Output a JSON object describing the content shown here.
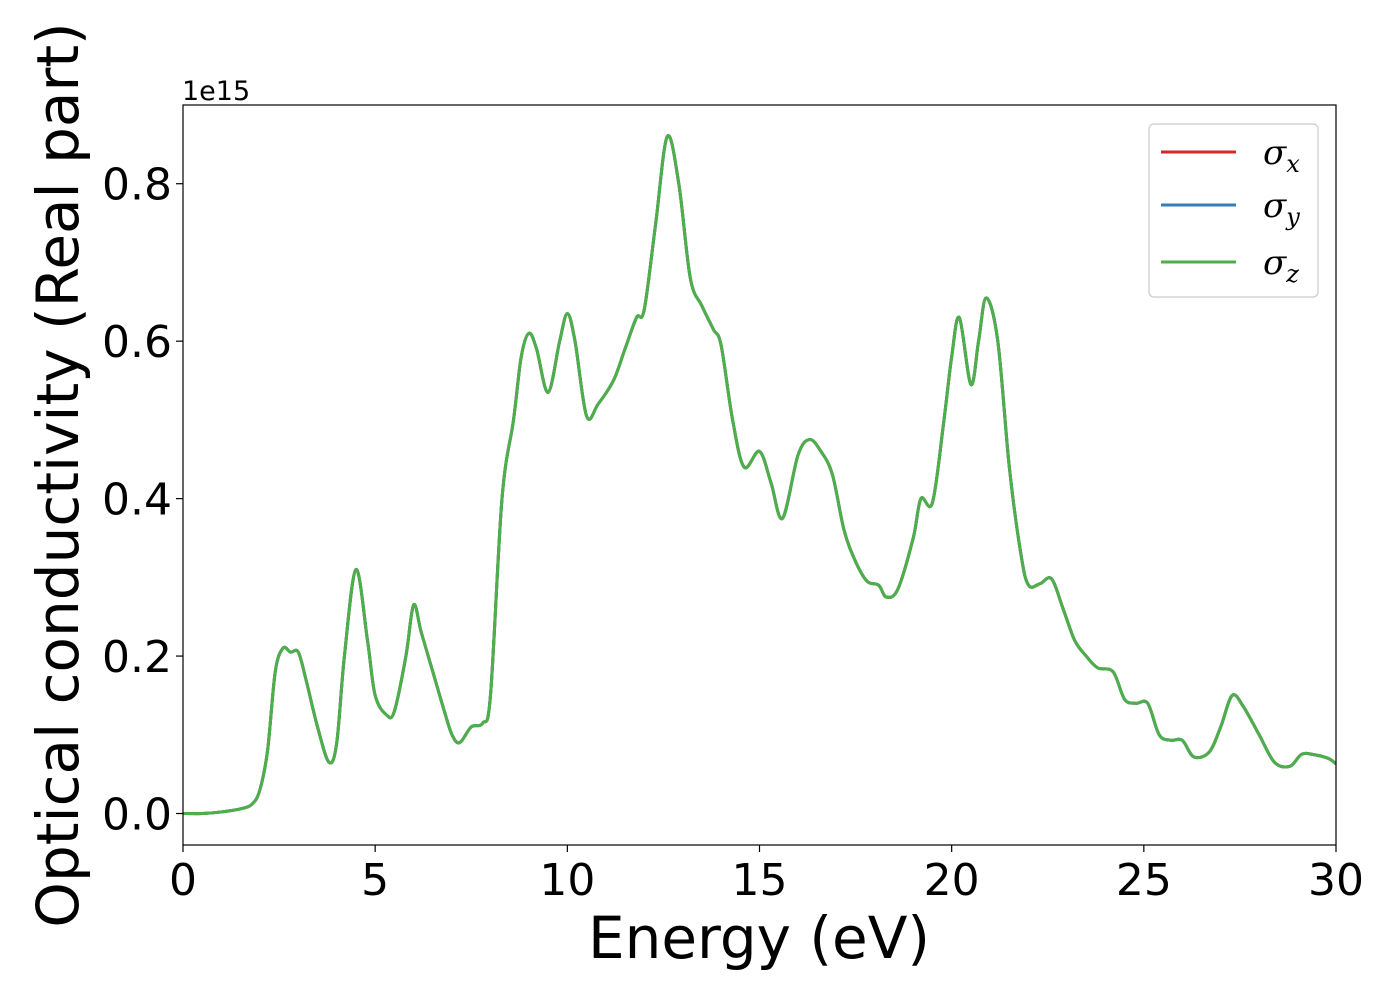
{
  "chart_data": {
    "type": "line",
    "title": "",
    "xlabel": "Energy (eV)",
    "ylabel": "Optical conductivity (Real part)",
    "offset_text": "1e15",
    "xlim": [
      0,
      30
    ],
    "ylim": [
      -0.04,
      0.9
    ],
    "y_scale": 1000000000000000.0,
    "x_ticks": [
      0,
      5,
      10,
      15,
      20,
      25,
      30
    ],
    "x_tick_labels": [
      "0",
      "5",
      "10",
      "15",
      "20",
      "25",
      "30"
    ],
    "y_ticks": [
      0.0,
      0.2,
      0.4,
      0.6,
      0.8
    ],
    "y_tick_labels": [
      "0.0",
      "0.2",
      "0.4",
      "0.6",
      "0.8"
    ],
    "grid": false,
    "legend_position": "top-right",
    "series": [
      {
        "name": "σ",
        "subscript": "x",
        "color": "#d62728"
      },
      {
        "name": "σ",
        "subscript": "y",
        "color": "#377eb8"
      },
      {
        "name": "σ",
        "subscript": "z",
        "color": "#4daf4a"
      }
    ],
    "x": [
      0,
      0.5,
      1.0,
      1.5,
      1.8,
      2.0,
      2.2,
      2.4,
      2.6,
      2.8,
      3.0,
      3.2,
      3.5,
      3.8,
      4.0,
      4.2,
      4.5,
      4.8,
      5.0,
      5.3,
      5.5,
      5.8,
      6.0,
      6.2,
      6.5,
      6.8,
      7.0,
      7.2,
      7.5,
      7.8,
      8.0,
      8.3,
      8.6,
      8.8,
      9.0,
      9.2,
      9.5,
      9.8,
      10.0,
      10.2,
      10.5,
      10.8,
      11.2,
      11.5,
      11.8,
      12.0,
      12.3,
      12.6,
      12.9,
      13.2,
      13.5,
      13.8,
      14.0,
      14.3,
      14.6,
      15.0,
      15.3,
      15.6,
      16.0,
      16.3,
      16.6,
      16.9,
      17.2,
      17.5,
      17.8,
      18.1,
      18.3,
      18.6,
      19.0,
      19.2,
      19.5,
      19.8,
      20.0,
      20.2,
      20.5,
      20.7,
      20.9,
      21.2,
      21.5,
      21.8,
      22.0,
      22.3,
      22.6,
      22.9,
      23.2,
      23.5,
      23.8,
      24.2,
      24.5,
      24.8,
      25.1,
      25.4,
      25.7,
      26.0,
      26.3,
      26.7,
      27.0,
      27.3,
      27.6,
      28.0,
      28.4,
      28.8,
      29.1,
      29.4,
      29.8,
      30.0
    ],
    "y": [
      0.0,
      0.0,
      0.002,
      0.006,
      0.012,
      0.03,
      0.08,
      0.18,
      0.21,
      0.205,
      0.205,
      0.17,
      0.11,
      0.065,
      0.09,
      0.2,
      0.31,
      0.22,
      0.15,
      0.125,
      0.13,
      0.2,
      0.265,
      0.23,
      0.18,
      0.13,
      0.1,
      0.09,
      0.11,
      0.115,
      0.15,
      0.4,
      0.5,
      0.58,
      0.61,
      0.59,
      0.535,
      0.6,
      0.635,
      0.6,
      0.505,
      0.52,
      0.55,
      0.59,
      0.63,
      0.64,
      0.75,
      0.86,
      0.8,
      0.68,
      0.645,
      0.615,
      0.595,
      0.5,
      0.44,
      0.46,
      0.42,
      0.375,
      0.455,
      0.475,
      0.46,
      0.43,
      0.36,
      0.32,
      0.295,
      0.29,
      0.275,
      0.285,
      0.35,
      0.4,
      0.395,
      0.5,
      0.58,
      0.63,
      0.545,
      0.6,
      0.655,
      0.6,
      0.44,
      0.33,
      0.29,
      0.292,
      0.298,
      0.26,
      0.22,
      0.2,
      0.185,
      0.18,
      0.145,
      0.14,
      0.14,
      0.1,
      0.093,
      0.093,
      0.072,
      0.078,
      0.11,
      0.15,
      0.135,
      0.1,
      0.065,
      0.06,
      0.075,
      0.075,
      0.07,
      0.063
    ]
  }
}
